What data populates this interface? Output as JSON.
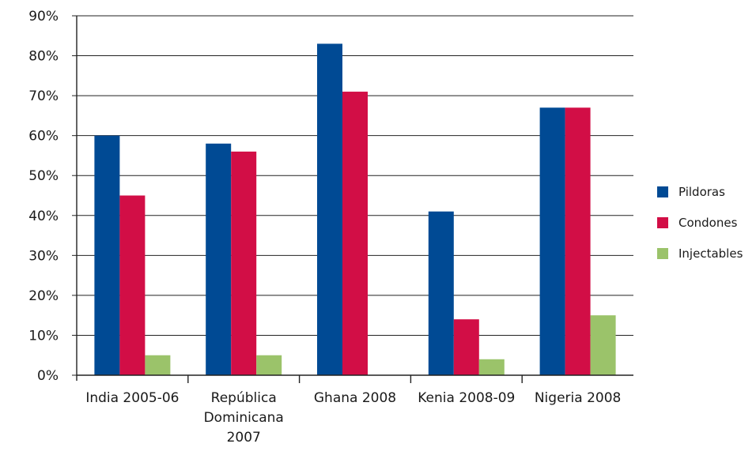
{
  "chart_data": {
    "type": "bar",
    "categories": [
      [
        "India 2005-06"
      ],
      [
        "República",
        "Dominicana",
        "2007"
      ],
      [
        "Ghana 2008"
      ],
      [
        "Kenia 2008-09"
      ],
      [
        "Nigeria 2008"
      ]
    ],
    "series": [
      {
        "name": "Pildoras",
        "color": "#004a94",
        "values": [
          60,
          58,
          83,
          41,
          67
        ]
      },
      {
        "name": "Condones",
        "color": "#d20e46",
        "values": [
          45,
          56,
          71,
          14,
          67
        ]
      },
      {
        "name": "Injectables",
        "color": "#9bc36a",
        "values": [
          5,
          5,
          0,
          4,
          15
        ]
      }
    ],
    "ylim": [
      0,
      90
    ],
    "yticks": [
      0,
      10,
      20,
      30,
      40,
      50,
      60,
      70,
      80,
      90
    ],
    "ytick_suffix": "%",
    "grid": true,
    "legend_position": "right",
    "title": "",
    "xlabel": "",
    "ylabel": ""
  }
}
